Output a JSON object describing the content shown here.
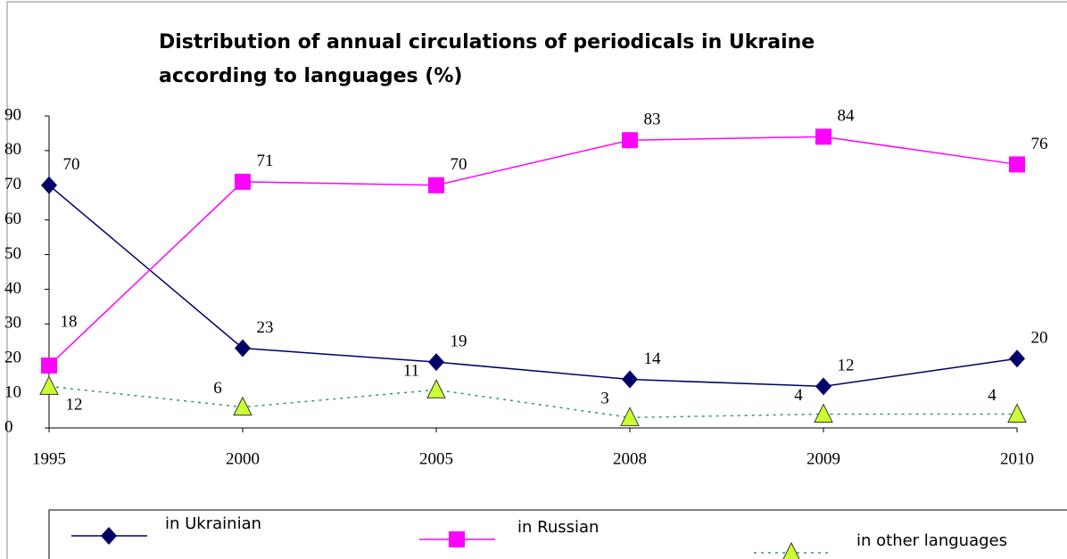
{
  "chart_data": {
    "type": "line",
    "title": [
      "Distribution of annual circulations of periodicals in Ukraine",
      "according to languages (%)"
    ],
    "categories": [
      "1995",
      "2000",
      "2005",
      "2008",
      "2009",
      "2010"
    ],
    "series": [
      {
        "name": "in Ukrainian",
        "color": "#000066",
        "marker": "diamond",
        "line": "solid",
        "values": [
          70,
          23,
          19,
          14,
          12,
          20
        ]
      },
      {
        "name": "in Russian",
        "color": "#ff00ff",
        "marker": "square",
        "line": "solid",
        "values": [
          18,
          71,
          70,
          83,
          84,
          76
        ]
      },
      {
        "name": "in other languages",
        "color": "#339966",
        "marker": "triangle",
        "marker_color": "#ccff33",
        "line": "dotted",
        "values": [
          12,
          6,
          11,
          3,
          4,
          4
        ]
      }
    ],
    "ylim": [
      0,
      90
    ],
    "yticks": [
      0,
      10,
      20,
      30,
      40,
      50,
      60,
      70,
      80,
      90
    ],
    "legend": "bottom"
  }
}
